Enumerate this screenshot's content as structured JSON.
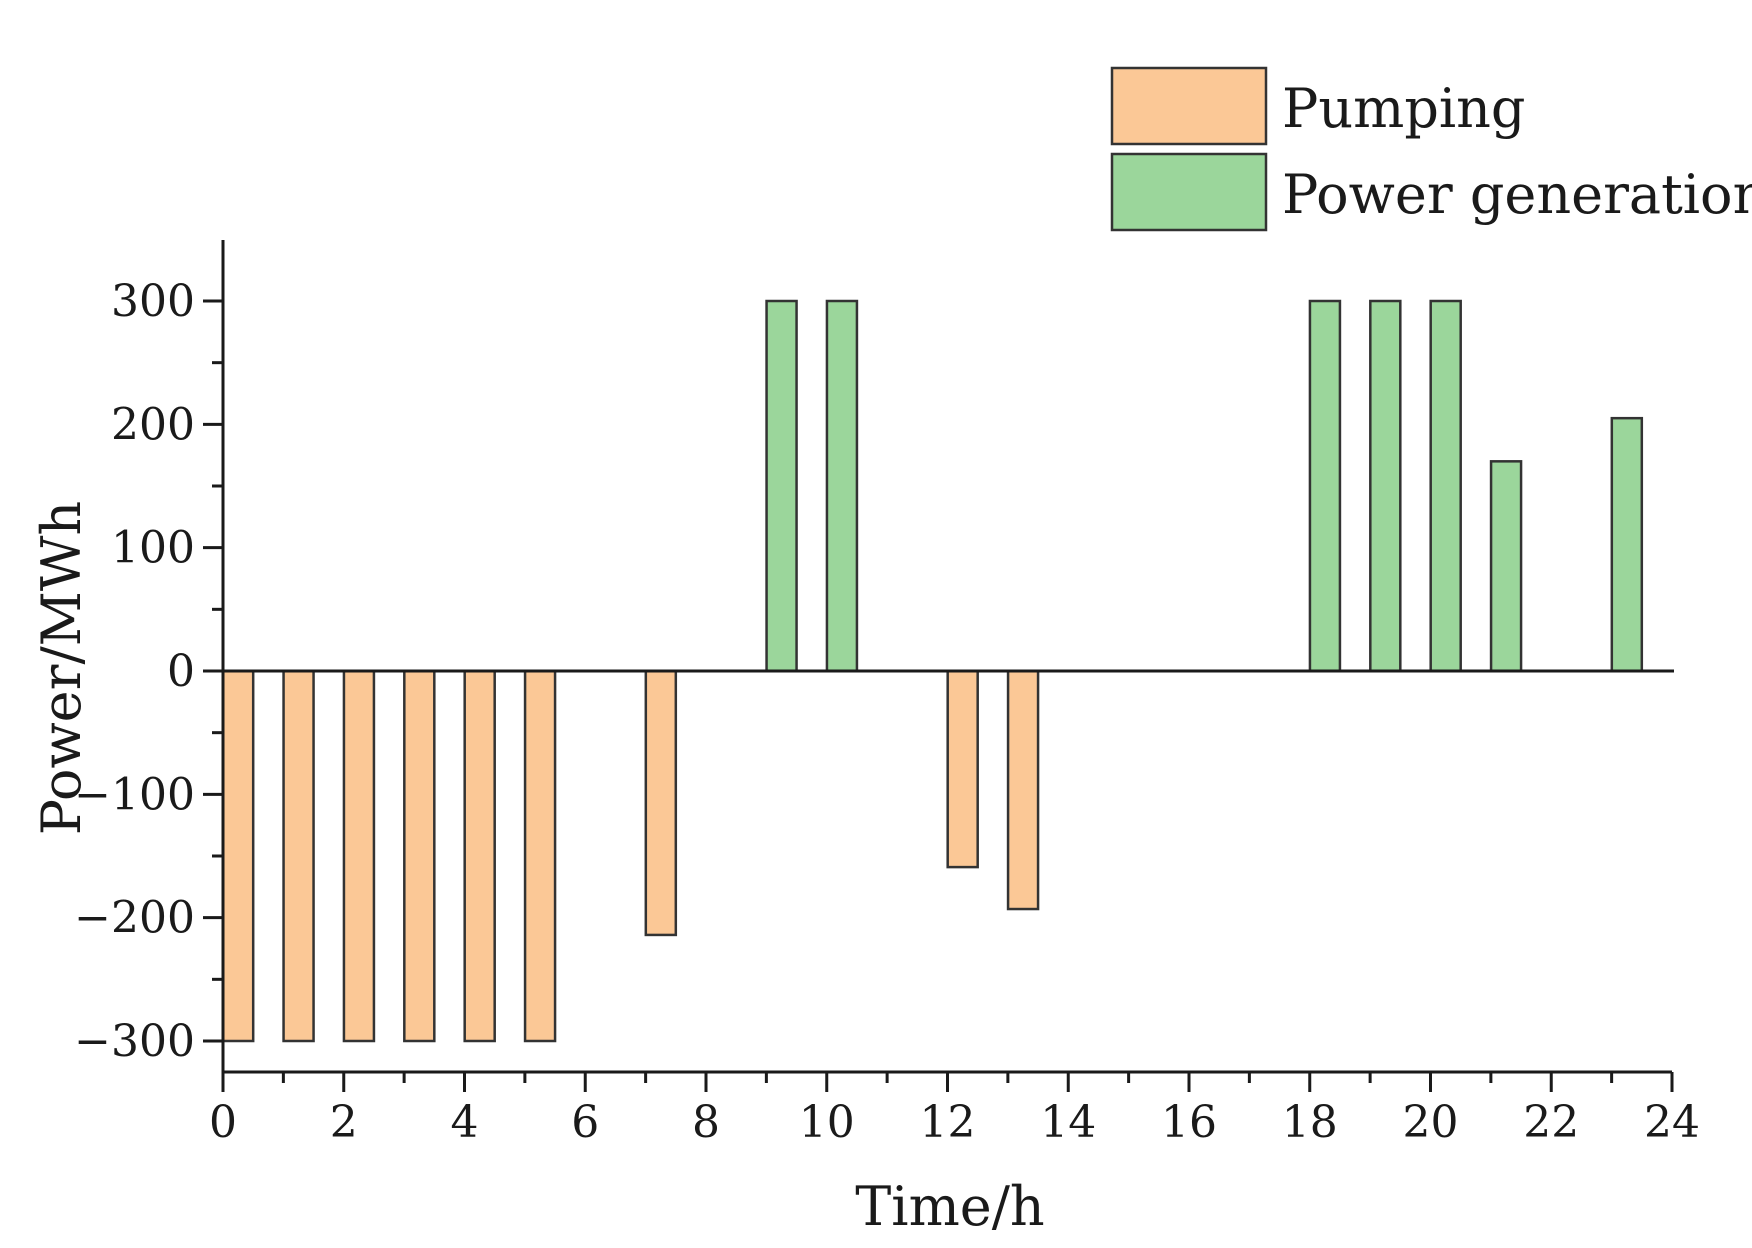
{
  "chart_data": {
    "type": "bar",
    "title": "",
    "xlabel": "Time/h",
    "ylabel": "Power/MWh",
    "xlim": [
      0,
      24
    ],
    "ylim": [
      -325,
      350
    ],
    "x_ticks": [
      0,
      2,
      4,
      6,
      8,
      10,
      12,
      14,
      16,
      18,
      20,
      22,
      24
    ],
    "x_tick_labels": [
      "0",
      "2",
      "4",
      "6",
      "8",
      "10",
      "12",
      "14",
      "16",
      "18",
      "20",
      "22",
      "24"
    ],
    "y_ticks": [
      -300,
      -200,
      -100,
      0,
      100,
      200,
      300
    ],
    "y_tick_labels": [
      "−300",
      "−200",
      "−100",
      "0",
      "100",
      "200",
      "300"
    ],
    "legend_position": "top-right",
    "series": [
      {
        "name": "Pumping",
        "color": "#fbc896",
        "points": [
          {
            "x": 1,
            "y": -300
          },
          {
            "x": 2,
            "y": -300
          },
          {
            "x": 3,
            "y": -300
          },
          {
            "x": 4,
            "y": -300
          },
          {
            "x": 5,
            "y": -300
          },
          {
            "x": 6,
            "y": -300
          },
          {
            "x": 8,
            "y": -214
          },
          {
            "x": 13,
            "y": -159
          },
          {
            "x": 14,
            "y": -193
          }
        ]
      },
      {
        "name": "Power generation",
        "color": "#9bd69b",
        "points": [
          {
            "x": 10,
            "y": 300
          },
          {
            "x": 11,
            "y": 300
          },
          {
            "x": 19,
            "y": 300
          },
          {
            "x": 20,
            "y": 300
          },
          {
            "x": 21,
            "y": 300
          },
          {
            "x": 22,
            "y": 170
          },
          {
            "x": 24,
            "y": 205
          }
        ]
      }
    ]
  }
}
